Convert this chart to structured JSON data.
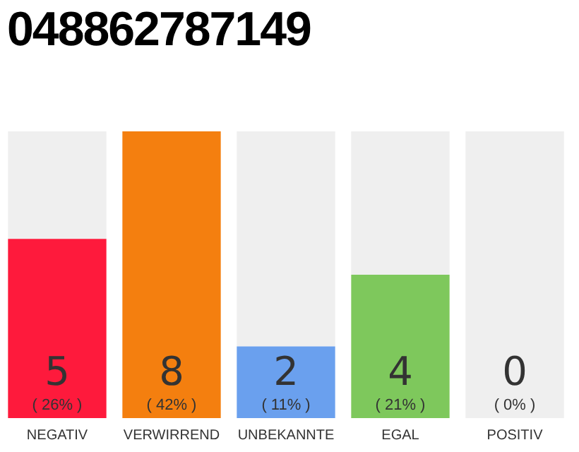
{
  "chart_data": {
    "type": "bar",
    "title": "048862787149",
    "categories": [
      "NEGATIV",
      "VERWIRREND",
      "UNBEKANNTE",
      "EGAL",
      "POSITIV"
    ],
    "series": [
      {
        "values": [
          5,
          8,
          2,
          4,
          0
        ],
        "colors": [
          "#fe1a3c",
          "#f47f0f",
          "#6aa0ee",
          "#7ec85c",
          "#bdbdbd"
        ],
        "value_labels": [
          "5",
          "8",
          "2",
          "4",
          null
        ]
      },
      {
        "values": [
          3,
          0,
          6,
          4,
          8
        ],
        "color": "#efefef"
      }
    ],
    "stacked": true,
    "ylim": [
      0,
      8
    ],
    "tick_labels": "x",
    "grid": false,
    "legend": false,
    "annotations": [
      "( 26% )",
      "( 42% )",
      "( 11% )",
      "( 21% )",
      "( 0% )",
      {
        "text": "0",
        "x": "POSITIV",
        "y": 0
      }
    ]
  }
}
